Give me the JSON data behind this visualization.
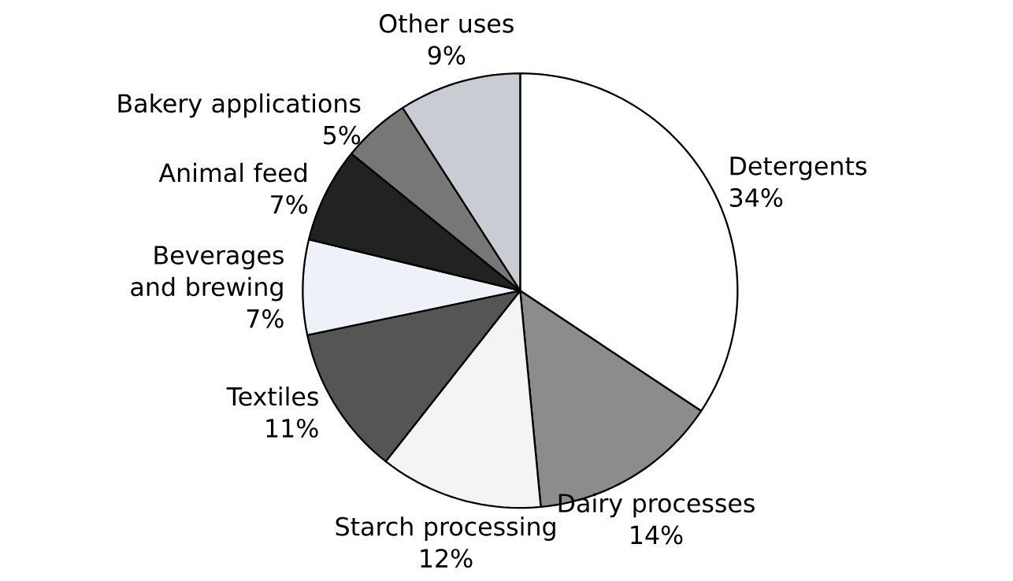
{
  "chart_data": {
    "type": "pie",
    "categories": [
      "Detergents",
      "Dairy processes",
      "Starch processing",
      "Textiles",
      "Beverages and brewing",
      "Animal feed",
      "Bakery applications",
      "Other uses"
    ],
    "values": [
      34,
      14,
      12,
      11,
      7,
      7,
      5,
      9
    ],
    "value_labels": [
      "34%",
      "14%",
      "12%",
      "11%",
      "7%",
      "7%",
      "5%",
      "9%"
    ],
    "colors": [
      "#ffffff",
      "#8c8c8c",
      "#f4f4f4",
      "#555555",
      "#eef2f8",
      "#222222",
      "#777777",
      "#c9ccd3"
    ]
  }
}
